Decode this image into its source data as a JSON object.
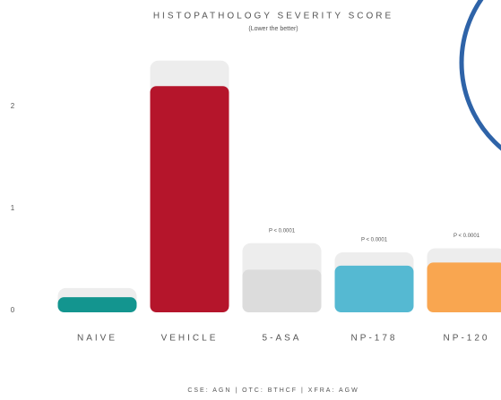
{
  "chart_data": {
    "type": "bar",
    "title": "HISTOPATHOLOGY SEVERITY SCORE",
    "subtitle": "(Lower the better)",
    "categories": [
      "NAIVE",
      "VEHICLE",
      "5-ASA",
      "NP-178",
      "NP-120"
    ],
    "values": [
      0.13,
      2.2,
      0.4,
      0.44,
      0.47
    ],
    "errors": [
      0.09,
      0.25,
      0.26,
      0.13,
      0.14
    ],
    "colors": [
      "#13958f",
      "#b5152b",
      "#dcdcdc",
      "#55b9d2",
      "#f9a650"
    ],
    "error_color": "#ededed",
    "p_values": [
      null,
      null,
      "P < 0.0001",
      "P < 0.0001",
      "P < 0.0001"
    ],
    "ylim": [
      0,
      2.5
    ],
    "yticks": [
      0,
      1,
      2
    ],
    "footer": "CSE: AGN | OTC: BTHCF | XFRA: AGW"
  }
}
